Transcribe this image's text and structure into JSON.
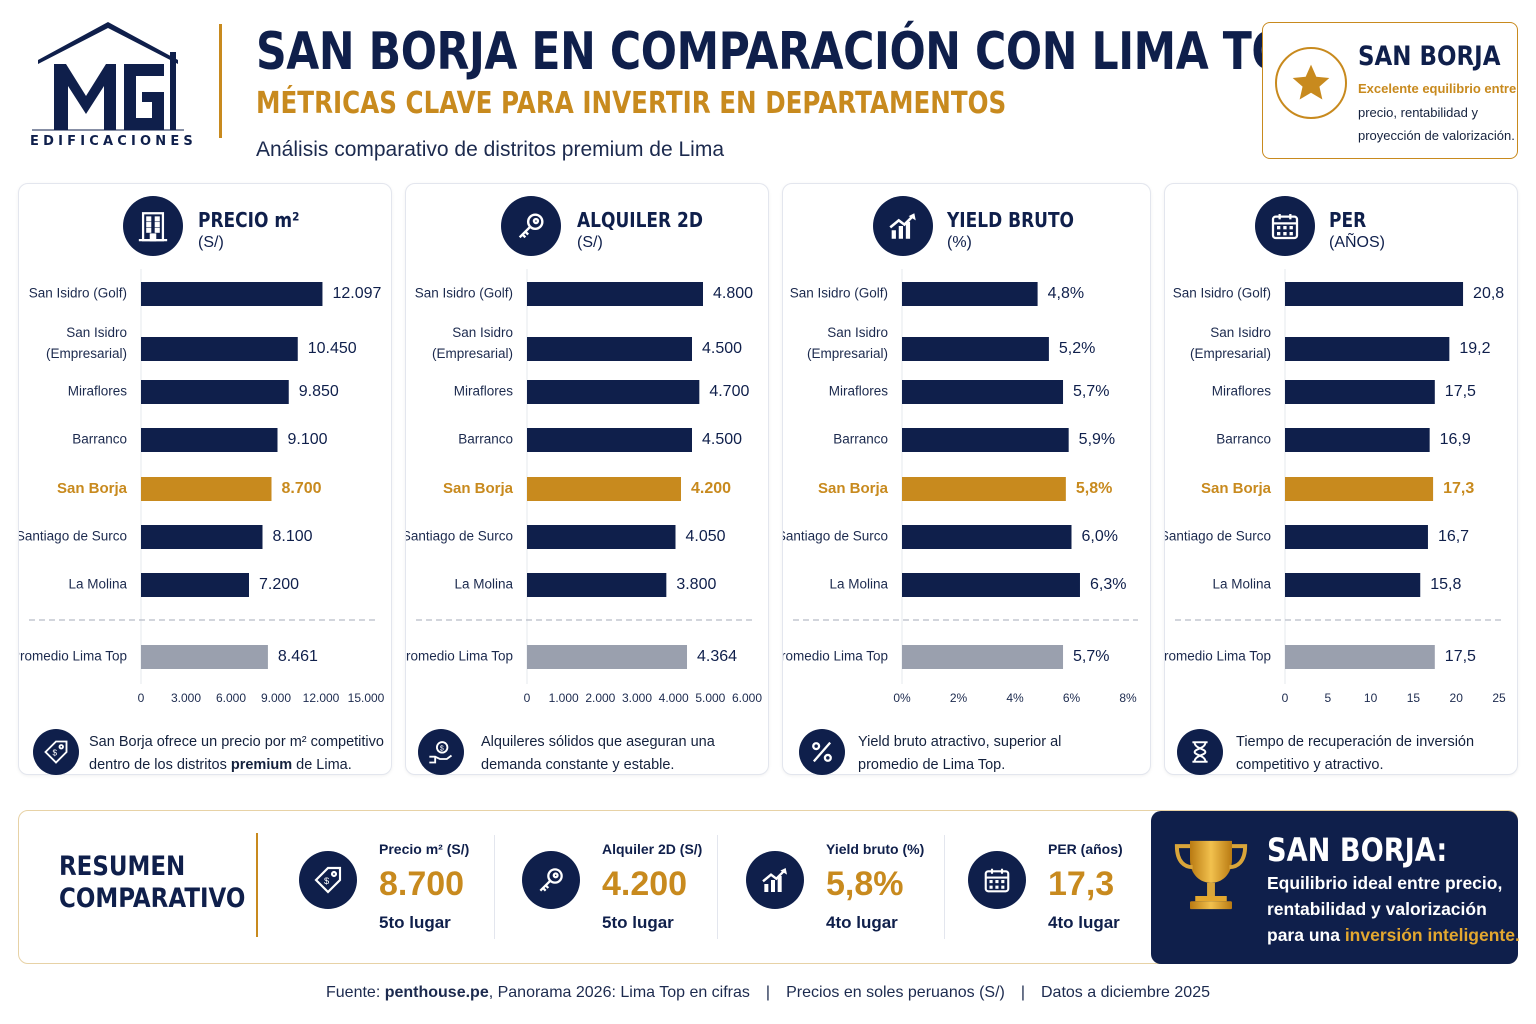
{
  "logo": {
    "text": "EDIFICACIONES"
  },
  "header": {
    "title": "SAN BORJA EN COMPARACIÓN CON LIMA TOP",
    "subtitle": "MÉTRICAS CLAVE PARA INVERTIR EN DEPARTAMENTOS",
    "tagline": "Análisis comparativo de distritos premium de Lima"
  },
  "highlight": {
    "title": "SAN BORJA",
    "line1": "Excelente equilibrio entre",
    "line2": "precio, rentabilidad y",
    "line3": "proyección de valorización.",
    "icon": "star-icon",
    "accent_color": "#c88a1e"
  },
  "colors": {
    "navy": "#0f1f4b",
    "gold": "#c88a1e",
    "gray": "#9aa0ae"
  },
  "chart_data": [
    {
      "type": "bar",
      "title": "PRECIO m²",
      "unit": "(S/)",
      "icon": "building-icon",
      "categories": [
        "San Isidro (Golf)",
        "San Isidro (Empresarial)",
        "Miraflores",
        "Barranco",
        "San Borja",
        "Santiago de Surco",
        "La Molina",
        "Promedio Lima Top"
      ],
      "values": [
        12097,
        10450,
        9850,
        9100,
        8700,
        8100,
        7200,
        8461
      ],
      "value_labels": [
        "12.097",
        "10.450",
        "9.850",
        "9.100",
        "8.700",
        "8.100",
        "7.200",
        "8.461"
      ],
      "xlim": [
        0,
        15000
      ],
      "ticks": [
        "0",
        "3.000",
        "6.000",
        "9.000",
        "12.000",
        "15.000"
      ],
      "highlight": "San Borja",
      "note": [
        "San Borja ofrece un precio por m² competitivo",
        "dentro de los distritos premium de Lima."
      ],
      "note_icon": "price-tag-icon"
    },
    {
      "type": "bar",
      "title": "ALQUILER 2D",
      "unit": "(S/)",
      "icon": "key-icon",
      "categories": [
        "San Isidro (Golf)",
        "San Isidro (Empresarial)",
        "Miraflores",
        "Barranco",
        "San Borja",
        "Santiago de Surco",
        "La Molina",
        "Promedio Lima Top"
      ],
      "values": [
        4800,
        4500,
        4700,
        4500,
        4200,
        4050,
        3800,
        4364
      ],
      "value_labels": [
        "4.800",
        "4.500",
        "4.700",
        "4.500",
        "4.200",
        "4.050",
        "3.800",
        "4.364"
      ],
      "xlim": [
        0,
        6000
      ],
      "ticks": [
        "0",
        "1.000",
        "2.000",
        "3.000",
        "4.000",
        "5.000",
        "6.000"
      ],
      "highlight": "San Borja",
      "note": [
        "Alquileres sólidos que aseguran una",
        "demanda constante y estable."
      ],
      "note_icon": "hand-coin-icon"
    },
    {
      "type": "bar",
      "title": "YIELD BRUTO",
      "unit": "(%)",
      "icon": "growth-chart-icon",
      "categories": [
        "San Isidro (Golf)",
        "San Isidro (Empresarial)",
        "Miraflores",
        "Barranco",
        "San Borja",
        "Santiago de Surco",
        "La Molina",
        "Promedio Lima Top"
      ],
      "values": [
        4.8,
        5.2,
        5.7,
        5.9,
        5.8,
        6.0,
        6.3,
        5.7
      ],
      "value_labels": [
        "4,8%",
        "5,2%",
        "5,7%",
        "5,9%",
        "5,8%",
        "6,0%",
        "6,3%",
        "5,7%"
      ],
      "xlim": [
        0,
        8
      ],
      "ticks": [
        "0%",
        "2%",
        "4%",
        "6%",
        "8%"
      ],
      "highlight": "San Borja",
      "note": [
        "Yield bruto atractivo, superior al",
        "promedio de Lima Top."
      ],
      "note_icon": "percent-icon"
    },
    {
      "type": "bar",
      "title": "PER",
      "unit": "(AÑOS)",
      "icon": "calendar-icon",
      "categories": [
        "San Isidro (Golf)",
        "San Isidro (Empresarial)",
        "Miraflores",
        "Barranco",
        "San Borja",
        "Santiago de Surco",
        "La Molina",
        "Promedio Lima Top"
      ],
      "values": [
        20.8,
        19.2,
        17.5,
        16.9,
        17.3,
        16.7,
        15.8,
        17.5
      ],
      "value_labels": [
        "20,8",
        "19,2",
        "17,5",
        "16,9",
        "17,3",
        "16,7",
        "15,8",
        "17,5"
      ],
      "xlim": [
        0,
        25
      ],
      "ticks": [
        "0",
        "5",
        "10",
        "15",
        "20",
        "25"
      ],
      "highlight": "San Borja",
      "note": [
        "Tiempo de recuperación de inversión",
        "competitivo y atractivo."
      ],
      "note_icon": "hourglass-icon"
    }
  ],
  "summary": {
    "title_line1": "RESUMEN",
    "title_line2": "COMPARATIVO",
    "items": [
      {
        "label": "Precio m² (S/)",
        "value": "8.700",
        "rank": "5to lugar",
        "icon": "price-tag-icon"
      },
      {
        "label": "Alquiler 2D (S/)",
        "value": "4.200",
        "rank": "5to lugar",
        "icon": "key-icon"
      },
      {
        "label": "Yield bruto (%)",
        "value": "5,8%",
        "rank": "4to lugar",
        "icon": "growth-chart-icon"
      },
      {
        "label": "PER (años)",
        "value": "17,3",
        "rank": "4to lugar",
        "icon": "calendar-icon"
      }
    ]
  },
  "winner": {
    "title": "SAN BORJA:",
    "line1": "Equilibrio ideal entre precio,",
    "line2": "rentabilidad y valorización",
    "line3_prefix": "para una ",
    "line3_highlight": "inversión inteligente.",
    "icon": "trophy-icon"
  },
  "footer": {
    "source_prefix": "Fuente: ",
    "source_bold": "penthouse.pe",
    "source_rest": ", Panorama 2026: Lima Top en cifras",
    "currency": "Precios en soles peruanos (S/)",
    "date": "Datos a diciembre 2025"
  }
}
